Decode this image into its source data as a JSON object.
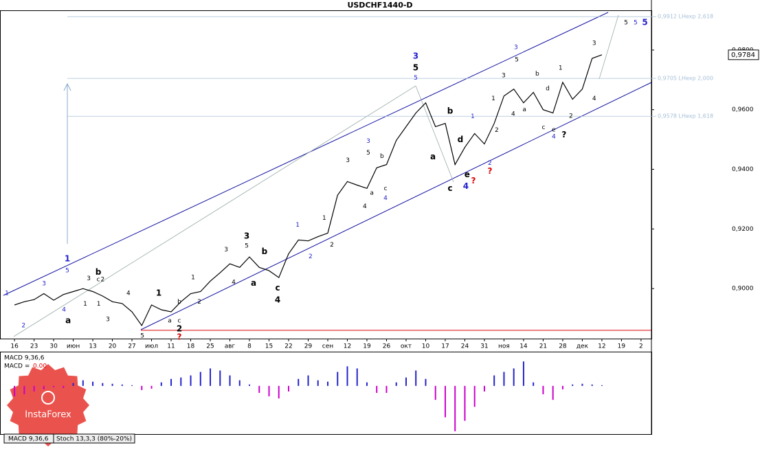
{
  "chart_data": [
    {
      "type": "line",
      "title": "USDCHF1440-D",
      "color": "#000000",
      "x": [
        0,
        0.5,
        1,
        1.5,
        2,
        2.5,
        3,
        3.5,
        4,
        4.5,
        5,
        5.5,
        6,
        6.5,
        7,
        7.5,
        8,
        8.5,
        9,
        9.5,
        10,
        10.5,
        11,
        11.5,
        12,
        12.5,
        13,
        13.5,
        14,
        14.5,
        15,
        15.5,
        16,
        16.5,
        17,
        17.5,
        18,
        18.5,
        19,
        19.5,
        20,
        20.5,
        21,
        21.5,
        22,
        22.5,
        23,
        23.5,
        24,
        24.5,
        25,
        25.5,
        26,
        26.5,
        27,
        27.5,
        28,
        28.5,
        29,
        29.5,
        30
      ],
      "values": [
        0.8945,
        0.8956,
        0.8963,
        0.8983,
        0.8961,
        0.898,
        0.899,
        0.9,
        0.899,
        0.8975,
        0.8956,
        0.895,
        0.8922,
        0.8876,
        0.8945,
        0.8929,
        0.8922,
        0.8956,
        0.8983,
        0.899,
        0.9025,
        0.9053,
        0.9083,
        0.9071,
        0.9106,
        0.9071,
        0.906,
        0.9037,
        0.9117,
        0.9163,
        0.916,
        0.9174,
        0.9186,
        0.9313,
        0.9359,
        0.9347,
        0.9336,
        0.9405,
        0.9416,
        0.9497,
        0.9543,
        0.9589,
        0.9623,
        0.9543,
        0.9554,
        0.9416,
        0.9474,
        0.952,
        0.9485,
        0.9554,
        0.9646,
        0.9669,
        0.9623,
        0.9658,
        0.96,
        0.9589,
        0.9692,
        0.9635,
        0.9669,
        0.9772,
        0.9784
      ],
      "xlim": [
        -0.74,
        32.53
      ],
      "xticks": [
        {
          "value": 0,
          "label": "16"
        },
        {
          "value": 1,
          "label": "23"
        },
        {
          "value": 2,
          "label": "30"
        },
        {
          "value": 3,
          "label": "июн"
        },
        {
          "value": 4,
          "label": "13"
        },
        {
          "value": 5,
          "label": "20"
        },
        {
          "value": 6,
          "label": "27"
        },
        {
          "value": 7,
          "label": "июл"
        },
        {
          "value": 8,
          "label": "11"
        },
        {
          "value": 9,
          "label": "18"
        },
        {
          "value": 10,
          "label": "25"
        },
        {
          "value": 11,
          "label": "авг"
        },
        {
          "value": 12,
          "label": "8"
        },
        {
          "value": 13,
          "label": "15"
        },
        {
          "value": 14,
          "label": "22"
        },
        {
          "value": 15,
          "label": "29"
        },
        {
          "value": 16,
          "label": "сен"
        },
        {
          "value": 17,
          "label": "12"
        },
        {
          "value": 18,
          "label": "19"
        },
        {
          "value": 19,
          "label": "26"
        },
        {
          "value": 20,
          "label": "окт"
        },
        {
          "value": 21,
          "label": "10"
        },
        {
          "value": 22,
          "label": "17"
        },
        {
          "value": 23,
          "label": "24"
        },
        {
          "value": 24,
          "label": "31"
        },
        {
          "value": 25,
          "label": "ноя"
        },
        {
          "value": 26,
          "label": "14"
        },
        {
          "value": 27,
          "label": "21"
        },
        {
          "value": 28,
          "label": "28"
        },
        {
          "value": 29,
          "label": "дек"
        },
        {
          "value": 30,
          "label": "12"
        },
        {
          "value": 31,
          "label": "19"
        },
        {
          "value": 32,
          "label": "2"
        }
      ],
      "ylim": [
        0.88322,
        0.99333
      ],
      "yticks": [
        {
          "value": 0.9,
          "label": "0,9000"
        },
        {
          "value": 0.92,
          "label": "0,9200"
        },
        {
          "value": 0.94,
          "label": "0,9400"
        },
        {
          "value": 0.96,
          "label": "0,9600"
        },
        {
          "value": 0.98,
          "label": "0,9800"
        }
      ],
      "last_price": {
        "value": 0.9784,
        "label": "0,9784"
      },
      "price_levels": [
        {
          "value": 0.9912,
          "label": "0,9912 LHexp 2,618",
          "color": "#a8c0d8"
        },
        {
          "value": 0.9705,
          "label": "0,9705 LHexp 2,000",
          "color": "#a8c0d8"
        },
        {
          "value": 0.9578,
          "label": "0,9578 LHexp 1,618",
          "color": "#a8c0d8"
        },
        {
          "value": 0.886,
          "color": "#dd0000"
        }
      ],
      "annotations": [
        {
          "text": "1",
          "color": "#2222cc",
          "x": -0.39,
          "y": 0.8984
        },
        {
          "text": "2",
          "color": "#2222cc",
          "x": 0.46,
          "y": 0.8876
        },
        {
          "text": "3",
          "color": "#2222cc",
          "x": 1.51,
          "y": 0.9016
        },
        {
          "text": "4",
          "color": "#2222cc",
          "x": 2.53,
          "y": 0.8929
        },
        {
          "text": "1",
          "color": "#2222cc",
          "x": 2.7,
          "y": 0.9099,
          "bold": true
        },
        {
          "text": "5",
          "color": "#2222cc",
          "x": 2.7,
          "y": 0.906
        },
        {
          "text": "a",
          "color": "#000000",
          "x": 2.74,
          "y": 0.8892,
          "bold": true
        },
        {
          "text": "3",
          "color": "#000000",
          "x": 3.79,
          "y": 0.9034
        },
        {
          "text": "b",
          "color": "#000000",
          "x": 4.28,
          "y": 0.9055,
          "bold": true
        },
        {
          "text": "c",
          "color": "#000000",
          "x": 4.28,
          "y": 0.903
        },
        {
          "text": "2",
          "color": "#000000",
          "x": 4.5,
          "y": 0.903
        },
        {
          "text": "1",
          "color": "#000000",
          "x": 3.61,
          "y": 0.8949
        },
        {
          "text": "1",
          "color": "#000000",
          "x": 4.3,
          "y": 0.8949
        },
        {
          "text": "3",
          "color": "#000000",
          "x": 4.77,
          "y": 0.8897
        },
        {
          "text": "4",
          "color": "#000000",
          "x": 5.82,
          "y": 0.8984
        },
        {
          "text": "5",
          "color": "#000000",
          "x": 6.53,
          "y": 0.8841
        },
        {
          "text": "1",
          "color": "#000000",
          "x": 7.37,
          "y": 0.8984,
          "bold": true
        },
        {
          "text": "b",
          "color": "#000000",
          "x": 8.42,
          "y": 0.8956
        },
        {
          "text": "a",
          "color": "#000000",
          "x": 7.93,
          "y": 0.8892
        },
        {
          "text": "c",
          "color": "#000000",
          "x": 8.42,
          "y": 0.8892
        },
        {
          "text": "2",
          "color": "#000000",
          "x": 8.42,
          "y": 0.8864,
          "bold": true
        },
        {
          "text": "?",
          "color": "#dd0000",
          "x": 8.42,
          "y": 0.8837,
          "bold": true
        },
        {
          "text": "2",
          "color": "#000000",
          "x": 9.44,
          "y": 0.8956
        },
        {
          "text": "1",
          "color": "#000000",
          "x": 9.12,
          "y": 0.9037
        },
        {
          "text": "3",
          "color": "#000000",
          "x": 10.81,
          "y": 0.9131
        },
        {
          "text": "4",
          "color": "#000000",
          "x": 11.19,
          "y": 0.9021
        },
        {
          "text": "3",
          "color": "#000000",
          "x": 11.86,
          "y": 0.9175,
          "bold": true
        },
        {
          "text": "5",
          "color": "#000000",
          "x": 11.86,
          "y": 0.9143
        },
        {
          "text": "a",
          "color": "#000000",
          "x": 12.21,
          "y": 0.9018,
          "bold": true
        },
        {
          "text": "b",
          "color": "#000000",
          "x": 12.77,
          "y": 0.9124,
          "bold": true
        },
        {
          "text": "c",
          "color": "#000000",
          "x": 13.44,
          "y": 0.9002,
          "bold": true
        },
        {
          "text": "4",
          "color": "#000000",
          "x": 13.44,
          "y": 0.8961,
          "bold": true
        },
        {
          "text": "1",
          "color": "#2222cc",
          "x": 14.46,
          "y": 0.9214
        },
        {
          "text": "2",
          "color": "#2222cc",
          "x": 15.12,
          "y": 0.9108
        },
        {
          "text": "1",
          "color": "#000000",
          "x": 15.82,
          "y": 0.9237
        },
        {
          "text": "2",
          "color": "#000000",
          "x": 16.21,
          "y": 0.9147
        },
        {
          "text": "3",
          "color": "#000000",
          "x": 17.02,
          "y": 0.943
        },
        {
          "text": "4",
          "color": "#000000",
          "x": 17.89,
          "y": 0.9276
        },
        {
          "text": "5",
          "color": "#000000",
          "x": 18.07,
          "y": 0.9455
        },
        {
          "text": "3",
          "color": "#2222cc",
          "x": 18.07,
          "y": 0.9494
        },
        {
          "text": "a",
          "color": "#000000",
          "x": 18.25,
          "y": 0.932
        },
        {
          "text": "b",
          "color": "#000000",
          "x": 18.77,
          "y": 0.9444
        },
        {
          "text": "c",
          "color": "#000000",
          "x": 18.95,
          "y": 0.9336
        },
        {
          "text": "4",
          "color": "#2222cc",
          "x": 18.95,
          "y": 0.9303
        },
        {
          "text": "3",
          "color": "#2222cc",
          "x": 20.49,
          "y": 0.9779,
          "bold": true
        },
        {
          "text": "5",
          "color": "#000000",
          "x": 20.49,
          "y": 0.974,
          "bold": true
        },
        {
          "text": "5",
          "color": "#2222cc",
          "x": 20.49,
          "y": 0.9706
        },
        {
          "text": "a",
          "color": "#000000",
          "x": 21.37,
          "y": 0.9441,
          "bold": true
        },
        {
          "text": "b",
          "color": "#000000",
          "x": 22.25,
          "y": 0.9595,
          "bold": true
        },
        {
          "text": "c",
          "color": "#000000",
          "x": 22.25,
          "y": 0.9336,
          "bold": true
        },
        {
          "text": "d",
          "color": "#000000",
          "x": 22.77,
          "y": 0.9499,
          "bold": true
        },
        {
          "text": "e",
          "color": "#000000",
          "x": 23.12,
          "y": 0.9382,
          "bold": true
        },
        {
          "text": "4",
          "color": "#2222cc",
          "x": 23.05,
          "y": 0.9343,
          "bold": true
        },
        {
          "text": "?",
          "color": "#dd0000",
          "x": 23.44,
          "y": 0.9361,
          "bold": true
        },
        {
          "text": "1",
          "color": "#2222cc",
          "x": 23.4,
          "y": 0.9577
        },
        {
          "text": "2",
          "color": "#2222cc",
          "x": 24.28,
          "y": 0.9421
        },
        {
          "text": "?",
          "color": "#dd0000",
          "x": 24.28,
          "y": 0.9393,
          "bold": true
        },
        {
          "text": "1",
          "color": "#000000",
          "x": 24.46,
          "y": 0.9637
        },
        {
          "text": "2",
          "color": "#000000",
          "x": 24.63,
          "y": 0.9531
        },
        {
          "text": "3",
          "color": "#000000",
          "x": 24.98,
          "y": 0.9715
        },
        {
          "text": "3",
          "color": "#2222cc",
          "x": 25.61,
          "y": 0.9809
        },
        {
          "text": "5",
          "color": "#000000",
          "x": 25.65,
          "y": 0.9768
        },
        {
          "text": "4",
          "color": "#000000",
          "x": 25.47,
          "y": 0.9586
        },
        {
          "text": "a",
          "color": "#000000",
          "x": 26.04,
          "y": 0.96
        },
        {
          "text": "b",
          "color": "#000000",
          "x": 26.7,
          "y": 0.972
        },
        {
          "text": "d",
          "color": "#000000",
          "x": 27.23,
          "y": 0.9671
        },
        {
          "text": "c",
          "color": "#000000",
          "x": 27.02,
          "y": 0.954
        },
        {
          "text": "e",
          "color": "#000000",
          "x": 27.54,
          "y": 0.9533
        },
        {
          "text": "4",
          "color": "#2222cc",
          "x": 27.54,
          "y": 0.951
        },
        {
          "text": "?",
          "color": "#000000",
          "x": 28.07,
          "y": 0.9515,
          "bold": true
        },
        {
          "text": "1",
          "color": "#000000",
          "x": 27.89,
          "y": 0.974
        },
        {
          "text": "2",
          "color": "#000000",
          "x": 28.42,
          "y": 0.9579
        },
        {
          "text": "3",
          "color": "#000000",
          "x": 29.61,
          "y": 0.9823
        },
        {
          "text": "4",
          "color": "#000000",
          "x": 29.61,
          "y": 0.9637
        },
        {
          "text": "5",
          "color": "#000000",
          "x": 31.23,
          "y": 0.9892
        },
        {
          "text": "5",
          "color": "#2222cc",
          "x": 31.72,
          "y": 0.9892
        },
        {
          "text": "5",
          "color": "#2222cc",
          "x": 32.2,
          "y": 0.9892,
          "bold": true
        }
      ]
    },
    {
      "type": "bar",
      "title": "MACD 9,36,6",
      "readout": {
        "label": "MACD =",
        "value": "0.00"
      },
      "x": [
        0,
        0.5,
        1,
        1.5,
        2,
        2.5,
        3,
        3.5,
        4,
        4.5,
        5,
        5.5,
        6,
        6.5,
        7,
        7.5,
        8,
        8.5,
        9,
        9.5,
        10,
        10.5,
        11,
        11.5,
        12,
        12.5,
        13,
        13.5,
        14,
        14.5,
        15,
        15.5,
        16,
        16.5,
        17,
        17.5,
        18,
        18.5,
        19,
        19.5,
        20,
        20.5,
        21,
        21.5,
        22,
        22.5,
        23,
        23.5,
        24,
        24.5,
        25,
        25.5,
        26,
        26.5,
        27,
        27.5,
        28,
        28.5,
        29,
        29.5,
        30
      ],
      "values": [
        -0.0015,
        -0.0012,
        -0.0008,
        -0.0005,
        -0.0002,
        -0.0003,
        0.0004,
        0.0008,
        0.0006,
        0.0004,
        0.0003,
        0.0002,
        0.0001,
        -0.0006,
        -0.0004,
        0.0005,
        0.001,
        0.0012,
        0.0015,
        0.002,
        0.0025,
        0.0022,
        0.0015,
        0.0008,
        0.0002,
        -0.001,
        -0.0015,
        -0.0018,
        -0.0008,
        0.001,
        0.0015,
        0.0008,
        0.0006,
        0.002,
        0.0028,
        0.0025,
        0.0005,
        -0.001,
        -0.001,
        0.0005,
        0.0012,
        0.0022,
        0.001,
        -0.002,
        -0.0045,
        -0.0065,
        -0.005,
        -0.003,
        -0.0008,
        0.0015,
        0.002,
        0.0025,
        0.0035,
        0.0005,
        -0.0012,
        -0.002,
        -0.0005,
        0.0002,
        0.0003,
        0.0002,
        0.0001
      ],
      "positive_color": "#2222cc",
      "negative_color": "#cc00cc",
      "xlim": [
        -0.74,
        32.53
      ],
      "ylim": [
        -0.0069,
        0.0048
      ]
    }
  ],
  "tabs": [
    "MACD 9,36,6",
    "Stoch 13,3,3 (80%-20%)"
  ],
  "watermark": "InstaForex"
}
